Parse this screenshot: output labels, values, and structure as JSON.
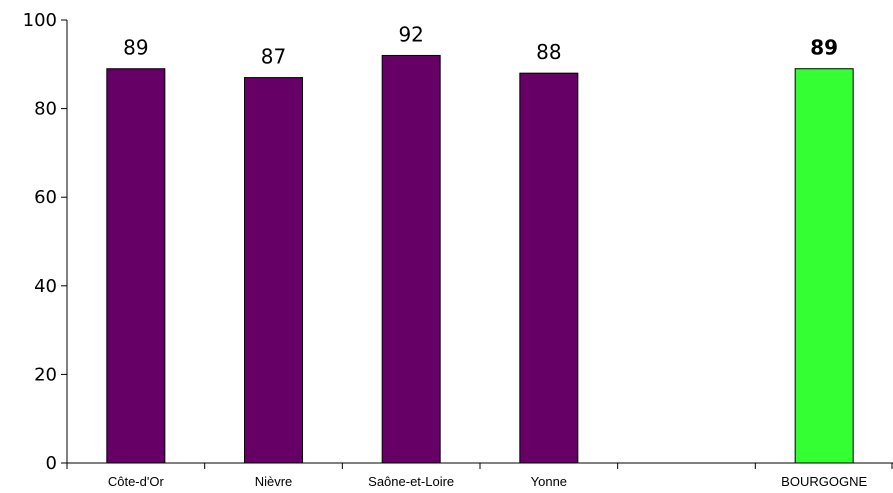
{
  "chart_data": {
    "type": "bar",
    "categories": [
      "Côte-d'Or",
      "Nièvre",
      "Saône-et-Loire",
      "Yonne",
      "",
      "BOURGOGNE"
    ],
    "values": [
      89,
      87,
      92,
      88,
      null,
      89
    ],
    "data_labels": [
      "89",
      "87",
      "92",
      "88",
      "",
      "89"
    ],
    "bar_colors": [
      "#660066",
      "#660066",
      "#660066",
      "#660066",
      "",
      "#33ff33"
    ],
    "bold_labels": [
      false,
      false,
      false,
      false,
      false,
      true
    ],
    "yticks": [
      "0",
      "20",
      "40",
      "60",
      "80",
      "100"
    ],
    "ylim": [
      0,
      100
    ],
    "grid": false,
    "title": "",
    "xlabel": "",
    "ylabel": ""
  }
}
